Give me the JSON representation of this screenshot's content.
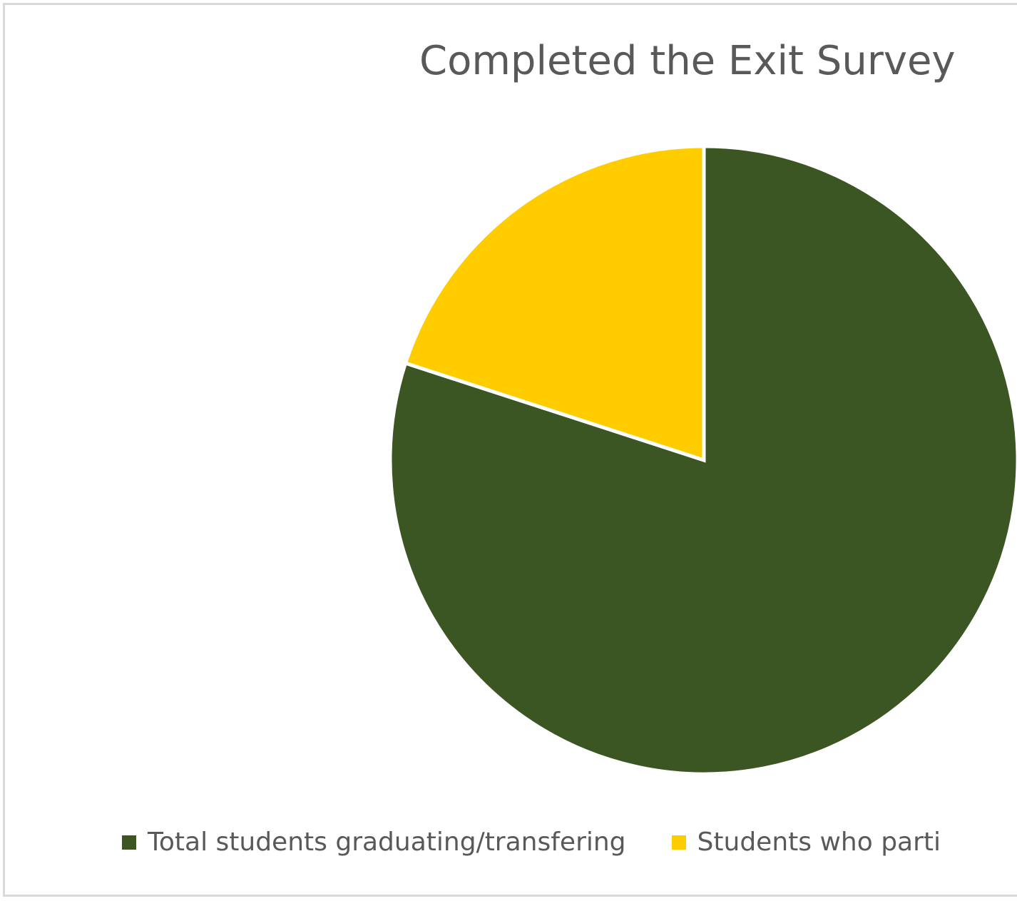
{
  "chart_data": {
    "type": "pie",
    "title": "Completed the Exit Survey",
    "categories": [
      "Total students graduating/transfering",
      "Students who parti"
    ],
    "values": [
      80,
      20
    ],
    "colors": [
      "#3b5623",
      "#ffcc00"
    ],
    "legend_position": "bottom"
  }
}
